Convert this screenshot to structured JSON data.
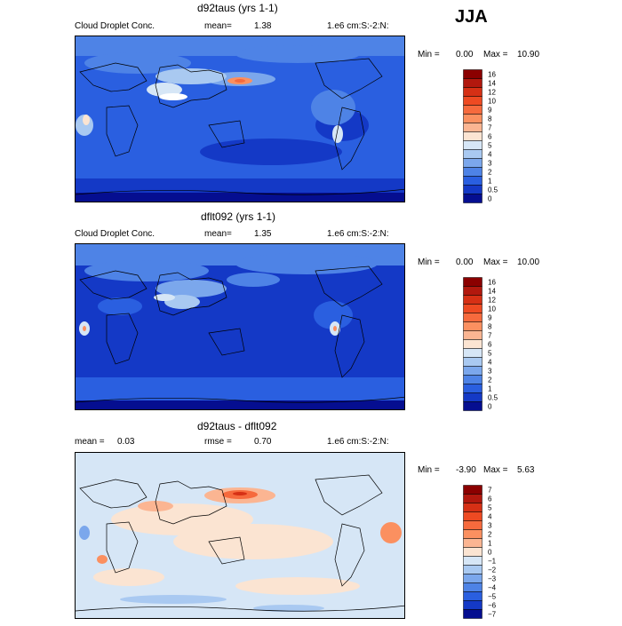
{
  "season": "JJA",
  "panels": [
    {
      "title": "d92taus (yrs 1-1)",
      "left_label": "Cloud Droplet Conc.",
      "mean_label": "mean=",
      "mean_value": "1.38",
      "right_label": "1.e6 cm:S:-2:N:",
      "min_label": "Min =",
      "min_value": "0.00",
      "max_label": "Max =",
      "max_value": "10.90"
    },
    {
      "title": "dflt092 (yrs 1-1)",
      "left_label": "Cloud Droplet Conc.",
      "mean_label": "mean=",
      "mean_value": "1.35",
      "right_label": "1.e6 cm:S:-2:N:",
      "min_label": "Min =",
      "min_value": "0.00",
      "max_label": "Max =",
      "max_value": "10.00"
    },
    {
      "title": "d92taus - dflt092",
      "left_label": "mean =",
      "left_value": "0.03",
      "mean_label": "rmse =",
      "mean_value": "0.70",
      "right_label": "1.e6 cm:S:-2:N:",
      "min_label": "Min =",
      "min_value": "-3.90",
      "max_label": "Max =",
      "max_value": "5.63"
    }
  ],
  "chart_data": [
    {
      "type": "heatmap",
      "title": "d92taus (yrs 1-1)",
      "variable": "Cloud Droplet Conc.",
      "units": "1.e6 cm:S:-2:N:",
      "mean": 1.38,
      "min": 0.0,
      "max": 10.9,
      "colorbar_levels": [
        "16",
        "14",
        "12",
        "10",
        "9",
        "8",
        "7",
        "6",
        "5",
        "4",
        "3",
        "2",
        "1",
        "0.5",
        "0"
      ],
      "colorbar_colors": [
        "#8b0000",
        "#b2180e",
        "#d63015",
        "#ee4a22",
        "#f66a3d",
        "#fb9060",
        "#fbb592",
        "#fbe4d2",
        "#d6e6f6",
        "#a9c9f1",
        "#7ba7ec",
        "#4e83e6",
        "#2a5fe0",
        "#1439c6",
        "#050e90"
      ]
    },
    {
      "type": "heatmap",
      "title": "dflt092 (yrs 1-1)",
      "variable": "Cloud Droplet Conc.",
      "units": "1.e6 cm:S:-2:N:",
      "mean": 1.35,
      "min": 0.0,
      "max": 10.0,
      "colorbar_levels": [
        "16",
        "14",
        "12",
        "10",
        "9",
        "8",
        "7",
        "6",
        "5",
        "4",
        "3",
        "2",
        "1",
        "0.5",
        "0"
      ],
      "colorbar_colors": [
        "#8b0000",
        "#b2180e",
        "#d63015",
        "#ee4a22",
        "#f66a3d",
        "#fb9060",
        "#fbb592",
        "#fbe4d2",
        "#d6e6f6",
        "#a9c9f1",
        "#7ba7ec",
        "#4e83e6",
        "#2a5fe0",
        "#1439c6",
        "#050e90"
      ]
    },
    {
      "type": "heatmap",
      "title": "d92taus - dflt092",
      "units": "1.e6 cm:S:-2:N:",
      "mean": 0.03,
      "rmse": 0.7,
      "min": -3.9,
      "max": 5.63,
      "colorbar_levels": [
        "7",
        "6",
        "5",
        "4",
        "3",
        "2",
        "1",
        "0",
        "−1",
        "−2",
        "−3",
        "−4",
        "−5",
        "−6",
        "−7"
      ],
      "colorbar_colors": [
        "#8b0000",
        "#b2180e",
        "#d63015",
        "#ee4a22",
        "#f66a3d",
        "#fb9060",
        "#fbb592",
        "#fbe4d2",
        "#d6e6f6",
        "#a9c9f1",
        "#7ba7ec",
        "#4e83e6",
        "#2a5fe0",
        "#1439c6",
        "#050e90"
      ]
    }
  ]
}
